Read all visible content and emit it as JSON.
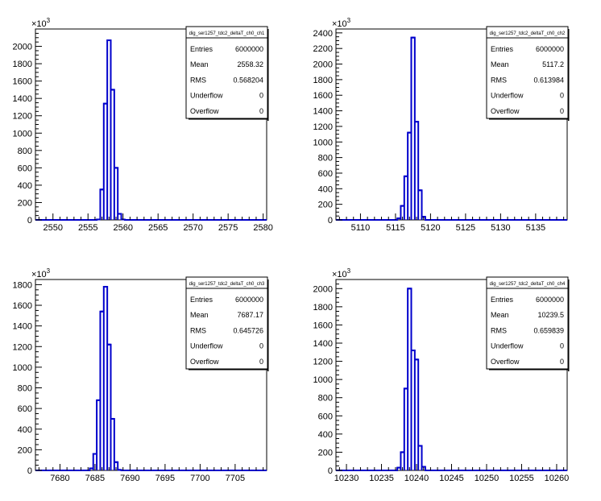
{
  "charts": [
    {
      "type": "bar",
      "stats": {
        "title": "dig_ser1257_tdc2_deltaT_ch0_ch1",
        "rows": [
          {
            "label": "Entries",
            "value": "6000000"
          },
          {
            "label": "Mean",
            "value": "2558.32"
          },
          {
            "label": "RMS",
            "value": "0.568204"
          },
          {
            "label": "Underflow",
            "value": "0"
          },
          {
            "label": "Overflow",
            "value": "0"
          }
        ]
      },
      "x_ticks": [
        "2550",
        "2555",
        "2560",
        "2565",
        "2570",
        "2575",
        "2580"
      ],
      "y_ticks": [
        "0",
        "200",
        "400",
        "600",
        "800",
        "1000",
        "1200",
        "1400",
        "1600",
        "1800",
        "2000"
      ],
      "y_multiplier": "10"
    },
    {
      "type": "bar",
      "stats": {
        "title": "dig_ser1257_tdc2_deltaT_ch0_ch2",
        "rows": [
          {
            "label": "Entries",
            "value": "6000000"
          },
          {
            "label": "Mean",
            "value": "5117.2"
          },
          {
            "label": "RMS",
            "value": "0.613984"
          },
          {
            "label": "Underflow",
            "value": "0"
          },
          {
            "label": "Overflow",
            "value": "0"
          }
        ]
      },
      "x_ticks": [
        "5110",
        "5115",
        "5120",
        "5125",
        "5130",
        "5135"
      ],
      "y_ticks": [
        "0",
        "200",
        "400",
        "600",
        "800",
        "1000",
        "1200",
        "1400",
        "1600",
        "1800",
        "2000",
        "2200",
        "2400"
      ],
      "y_multiplier": "10"
    },
    {
      "type": "bar",
      "stats": {
        "title": "dig_ser1257_tdc2_deltaT_ch0_ch3",
        "rows": [
          {
            "label": "Entries",
            "value": "6000000"
          },
          {
            "label": "Mean",
            "value": "7687.17"
          },
          {
            "label": "RMS",
            "value": "0.645726"
          },
          {
            "label": "Underflow",
            "value": "0"
          },
          {
            "label": "Overflow",
            "value": "0"
          }
        ]
      },
      "x_ticks": [
        "7680",
        "7685",
        "7690",
        "7695",
        "7700",
        "7705"
      ],
      "y_ticks": [
        "0",
        "200",
        "400",
        "600",
        "800",
        "1000",
        "1200",
        "1400",
        "1600",
        "1800"
      ],
      "y_multiplier": "10"
    },
    {
      "type": "bar",
      "stats": {
        "title": "dig_ser1257_tdc2_deltaT_ch0_ch4",
        "rows": [
          {
            "label": "Entries",
            "value": "6000000"
          },
          {
            "label": "Mean",
            "value": "10239.5"
          },
          {
            "label": "RMS",
            "value": "0.659839"
          },
          {
            "label": "Underflow",
            "value": "0"
          },
          {
            "label": "Overflow",
            "value": "0"
          }
        ]
      },
      "x_ticks": [
        "10230",
        "10235",
        "10240",
        "10245",
        "10250",
        "10255",
        "10260"
      ],
      "y_ticks": [
        "0",
        "200",
        "400",
        "600",
        "800",
        "1000",
        "1200",
        "1400",
        "1600",
        "1800",
        "2000"
      ],
      "y_multiplier": "10"
    }
  ],
  "chart_data": [
    {
      "type": "bar",
      "title": "dig_ser1257_tdc2_deltaT_ch0_ch1",
      "xlim": [
        2547.5,
        2580.5
      ],
      "ylim": [
        0,
        2200
      ],
      "y_unit_multiplier": "x10^3",
      "bin_width": 0.5,
      "bins": [
        {
          "x": 2556.5,
          "value": 5
        },
        {
          "x": 2557.0,
          "value": 350
        },
        {
          "x": 2557.5,
          "value": 1340
        },
        {
          "x": 2558.0,
          "value": 2070
        },
        {
          "x": 2558.5,
          "value": 1500
        },
        {
          "x": 2559.0,
          "value": 600
        },
        {
          "x": 2559.5,
          "value": 70
        },
        {
          "x": 2560.0,
          "value": 5
        }
      ],
      "line_color": "#0000cc",
      "grid": false
    },
    {
      "type": "bar",
      "title": "dig_ser1257_tdc2_deltaT_ch0_ch2",
      "xlim": [
        5106.5,
        5139.5
      ],
      "ylim": [
        0,
        2450
      ],
      "y_unit_multiplier": "x10^3",
      "bin_width": 0.5,
      "bins": [
        {
          "x": 5115.5,
          "value": 20
        },
        {
          "x": 5116.0,
          "value": 180
        },
        {
          "x": 5116.5,
          "value": 560
        },
        {
          "x": 5117.0,
          "value": 1120
        },
        {
          "x": 5117.5,
          "value": 2340
        },
        {
          "x": 5118.0,
          "value": 1260
        },
        {
          "x": 5118.5,
          "value": 380
        },
        {
          "x": 5119.0,
          "value": 40
        }
      ],
      "line_color": "#0000cc",
      "grid": false
    },
    {
      "type": "bar",
      "title": "dig_ser1257_tdc2_deltaT_ch0_ch3",
      "xlim": [
        7676.5,
        7709.5
      ],
      "ylim": [
        0,
        1850
      ],
      "y_unit_multiplier": "x10^3",
      "bin_width": 0.5,
      "bins": [
        {
          "x": 7684.5,
          "value": 20
        },
        {
          "x": 7685.0,
          "value": 160
        },
        {
          "x": 7685.5,
          "value": 680
        },
        {
          "x": 7686.0,
          "value": 1540
        },
        {
          "x": 7686.5,
          "value": 1780
        },
        {
          "x": 7687.0,
          "value": 1220
        },
        {
          "x": 7687.5,
          "value": 500
        },
        {
          "x": 7688.0,
          "value": 80
        },
        {
          "x": 7688.5,
          "value": 5
        }
      ],
      "line_color": "#0000cc",
      "grid": false
    },
    {
      "type": "bar",
      "title": "dig_ser1257_tdc2_deltaT_ch0_ch4",
      "xlim": [
        10228.5,
        10261.5
      ],
      "ylim": [
        0,
        2100
      ],
      "y_unit_multiplier": "x10^3",
      "bin_width": 0.5,
      "bins": [
        {
          "x": 10237.5,
          "value": 30
        },
        {
          "x": 10238.0,
          "value": 200
        },
        {
          "x": 10238.5,
          "value": 900
        },
        {
          "x": 10239.0,
          "value": 2000
        },
        {
          "x": 10239.5,
          "value": 1320
        },
        {
          "x": 10240.0,
          "value": 1220
        },
        {
          "x": 10240.5,
          "value": 270
        },
        {
          "x": 10241.0,
          "value": 40
        }
      ],
      "line_color": "#0000cc",
      "grid": false
    }
  ]
}
